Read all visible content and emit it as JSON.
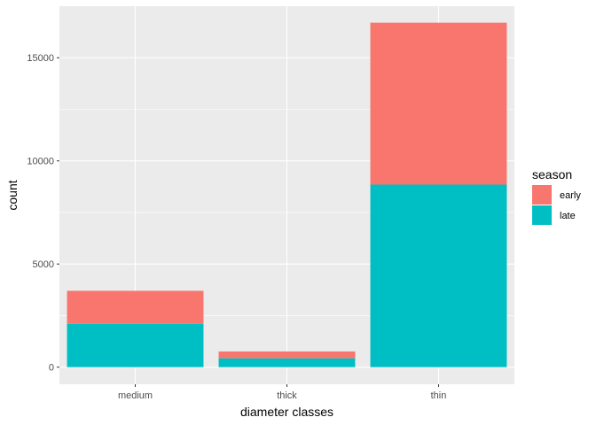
{
  "chart_data": {
    "type": "bar",
    "stacked": true,
    "title": "",
    "xlabel": "diameter classes",
    "ylabel": "count",
    "categories": [
      "medium",
      "thick",
      "thin"
    ],
    "series": [
      {
        "name": "early",
        "values": [
          1600,
          330,
          7850
        ],
        "color": "#F8766D"
      },
      {
        "name": "late",
        "values": [
          2100,
          430,
          8850
        ],
        "color": "#00BFC4"
      }
    ],
    "yticks": [
      0,
      5000,
      10000,
      15000
    ],
    "ylim": [
      -830,
      17500
    ],
    "grid": true,
    "panel_background": "#EBEBEB",
    "legend": {
      "title": "season",
      "position": "right"
    }
  }
}
